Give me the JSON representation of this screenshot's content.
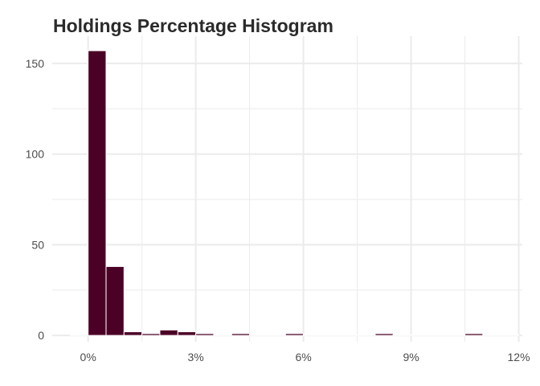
{
  "chart_data": {
    "type": "bar",
    "title": "Holdings Percentage Histogram",
    "xlabel": "",
    "ylabel": "",
    "bin_width": 0.5,
    "bins": [
      {
        "x_start": -0.5,
        "x_end": 0.0,
        "count": 0
      },
      {
        "x_start": 0.0,
        "x_end": 0.5,
        "count": 157
      },
      {
        "x_start": 0.5,
        "x_end": 1.0,
        "count": 38
      },
      {
        "x_start": 1.0,
        "x_end": 1.5,
        "count": 2
      },
      {
        "x_start": 1.5,
        "x_end": 2.0,
        "count": 1
      },
      {
        "x_start": 2.0,
        "x_end": 2.5,
        "count": 3
      },
      {
        "x_start": 2.5,
        "x_end": 3.0,
        "count": 2
      },
      {
        "x_start": 3.0,
        "x_end": 3.5,
        "count": 1
      },
      {
        "x_start": 3.5,
        "x_end": 4.0,
        "count": 0
      },
      {
        "x_start": 4.0,
        "x_end": 4.5,
        "count": 1
      },
      {
        "x_start": 4.5,
        "x_end": 5.0,
        "count": 0
      },
      {
        "x_start": 5.0,
        "x_end": 5.5,
        "count": 0
      },
      {
        "x_start": 5.5,
        "x_end": 6.0,
        "count": 1
      },
      {
        "x_start": 6.0,
        "x_end": 6.5,
        "count": 0
      },
      {
        "x_start": 6.5,
        "x_end": 7.0,
        "count": 0
      },
      {
        "x_start": 7.0,
        "x_end": 7.5,
        "count": 0
      },
      {
        "x_start": 7.5,
        "x_end": 8.0,
        "count": 0
      },
      {
        "x_start": 8.0,
        "x_end": 8.5,
        "count": 1
      },
      {
        "x_start": 8.5,
        "x_end": 9.0,
        "count": 0
      },
      {
        "x_start": 9.0,
        "x_end": 9.5,
        "count": 0
      },
      {
        "x_start": 9.5,
        "x_end": 10.0,
        "count": 0
      },
      {
        "x_start": 10.0,
        "x_end": 10.5,
        "count": 0
      },
      {
        "x_start": 10.5,
        "x_end": 11.0,
        "count": 1
      },
      {
        "x_start": 11.0,
        "x_end": 11.5,
        "count": 0
      },
      {
        "x_start": 11.5,
        "x_end": 12.0,
        "count": 0
      }
    ],
    "x_ticks": [
      {
        "value": 0,
        "label": "0%"
      },
      {
        "value": 3,
        "label": "3%"
      },
      {
        "value": 6,
        "label": "6%"
      },
      {
        "value": 9,
        "label": "9%"
      },
      {
        "value": 12,
        "label": "12%"
      }
    ],
    "y_ticks": [
      {
        "value": 0,
        "label": "0"
      },
      {
        "value": 50,
        "label": "50"
      },
      {
        "value": 100,
        "label": "100"
      },
      {
        "value": 150,
        "label": "150"
      }
    ],
    "xlim": [
      -1.0,
      12.1
    ],
    "ylim": [
      -3.5,
      165
    ],
    "grid": true,
    "legend": "none",
    "colors": {
      "bar_fill": "#4b0026",
      "bar_outline": "#ffffff",
      "grid": "#ebebeb"
    }
  }
}
